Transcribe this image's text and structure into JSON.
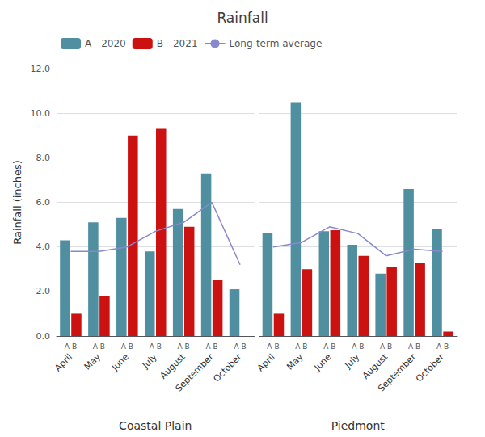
{
  "chart_data": [
    {
      "type": "bar",
      "title": "Rainfall",
      "ylabel": "Rainfall (inches)",
      "xlabel": "Coastal Plain",
      "categories": [
        "April",
        "May",
        "June",
        "July",
        "August",
        "September",
        "October"
      ],
      "annotations": [
        "A B",
        "A B",
        "A B",
        "A B",
        "A B",
        "A B",
        "A B"
      ],
      "series": [
        {
          "name": "A—2020",
          "color": "#4f8f9f",
          "values": [
            4.3,
            5.1,
            5.3,
            3.8,
            5.7,
            7.3,
            2.1
          ]
        },
        {
          "name": "B—2021",
          "color": "#cc1111",
          "values": [
            1.0,
            1.8,
            9.0,
            9.3,
            4.9,
            2.5,
            0.0
          ]
        },
        {
          "name": "Long-term average",
          "type": "line",
          "color": "#8888cc",
          "values": [
            3.8,
            3.8,
            4.0,
            4.7,
            5.1,
            6.0,
            3.2
          ]
        }
      ],
      "ylim": [
        0,
        12.0
      ],
      "yticks": [
        {
          "value": 0,
          "label": "0.0"
        },
        {
          "value": 2,
          "label": "2.0"
        },
        {
          "value": 4,
          "label": "4.0"
        },
        {
          "value": 6,
          "label": "6.0"
        },
        {
          "value": 8,
          "label": "8.0"
        },
        {
          "value": 10,
          "label": "10.0"
        },
        {
          "value": 12,
          "label": "12.0"
        }
      ],
      "grid": true,
      "legend": "upper left"
    },
    {
      "type": "bar",
      "xlabel": "Piedmont",
      "categories": [
        "April",
        "May",
        "June",
        "July",
        "August",
        "September",
        "October"
      ],
      "annotations": [
        "A B",
        "A B",
        "A B",
        "A B",
        "A B",
        "A B",
        "A B"
      ],
      "series": [
        {
          "name": "A—2020",
          "color": "#4f8f9f",
          "values": [
            4.6,
            10.5,
            4.7,
            4.1,
            2.8,
            6.6,
            4.8
          ]
        },
        {
          "name": "B—2021",
          "color": "#cc1111",
          "values": [
            1.0,
            3.0,
            4.75,
            3.6,
            3.1,
            3.3,
            0.2
          ]
        },
        {
          "name": "Long-term average",
          "type": "line",
          "color": "#8888cc",
          "values": [
            4.0,
            4.2,
            4.9,
            4.6,
            3.6,
            3.9,
            3.8
          ]
        }
      ],
      "ylim": [
        0,
        12.0
      ],
      "yticks": [
        0,
        2,
        4,
        6,
        8,
        10,
        12
      ],
      "grid": true,
      "tick_labels": "x"
    }
  ]
}
